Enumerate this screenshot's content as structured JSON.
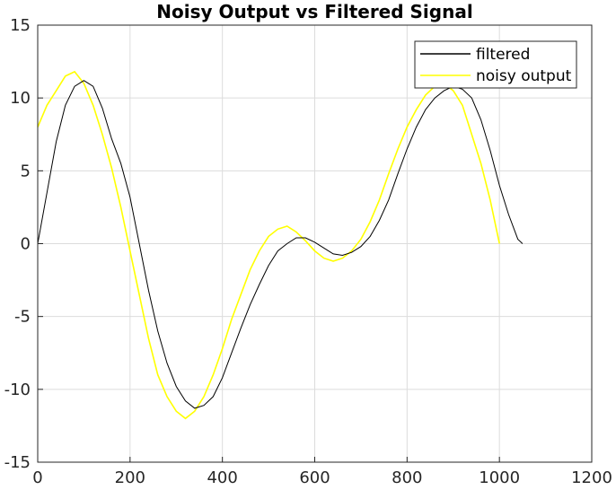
{
  "chart_data": {
    "type": "line",
    "title": "Noisy Output vs Filtered Signal",
    "xlabel": "",
    "ylabel": "",
    "xlim": [
      0,
      1200
    ],
    "ylim": [
      -15,
      15
    ],
    "xticks": [
      0,
      200,
      400,
      600,
      800,
      1000,
      1200
    ],
    "yticks": [
      -15,
      -10,
      -5,
      0,
      5,
      10,
      15
    ],
    "grid": true,
    "legend_position": "top-right",
    "series": [
      {
        "name": "filtered",
        "color": "#000000",
        "x": [
          0,
          20,
          40,
          60,
          80,
          100,
          120,
          140,
          160,
          180,
          200,
          220,
          240,
          260,
          280,
          300,
          320,
          340,
          360,
          380,
          400,
          420,
          440,
          460,
          480,
          500,
          520,
          540,
          560,
          580,
          600,
          620,
          640,
          660,
          680,
          700,
          720,
          740,
          760,
          780,
          800,
          820,
          840,
          860,
          880,
          900,
          920,
          940,
          960,
          980,
          1000,
          1020,
          1040,
          1050
        ],
        "y": [
          0,
          3.5,
          7,
          9.5,
          10.8,
          11.2,
          10.8,
          9.3,
          7.2,
          5.5,
          3.2,
          0,
          -3.2,
          -6,
          -8.2,
          -9.8,
          -10.8,
          -11.3,
          -11.1,
          -10.5,
          -9.2,
          -7.5,
          -5.8,
          -4.2,
          -2.8,
          -1.5,
          -0.5,
          0,
          0.4,
          0.4,
          0.1,
          -0.3,
          -0.7,
          -0.8,
          -0.6,
          -0.2,
          0.5,
          1.6,
          3,
          4.8,
          6.5,
          8,
          9.2,
          10,
          10.5,
          10.8,
          10.6,
          10,
          8.5,
          6.4,
          4,
          2,
          0.3,
          0
        ]
      },
      {
        "name": "noisy output",
        "color": "#ffff00",
        "x": [
          0,
          20,
          40,
          60,
          80,
          100,
          120,
          140,
          160,
          180,
          200,
          220,
          240,
          260,
          280,
          300,
          320,
          340,
          360,
          380,
          400,
          420,
          440,
          460,
          480,
          500,
          520,
          540,
          560,
          580,
          600,
          620,
          640,
          660,
          680,
          700,
          720,
          740,
          760,
          780,
          800,
          820,
          840,
          860,
          880,
          900,
          920,
          940,
          960,
          980,
          1000
        ],
        "y": [
          8,
          9.5,
          10.5,
          11.5,
          11.8,
          11,
          9.5,
          7.5,
          5.2,
          2.5,
          -0.5,
          -3.5,
          -6.5,
          -9,
          -10.5,
          -11.5,
          -12,
          -11.5,
          -10.5,
          -9,
          -7.2,
          -5.2,
          -3.5,
          -1.8,
          -0.5,
          0.5,
          1,
          1.2,
          0.8,
          0.2,
          -0.5,
          -1,
          -1.2,
          -1,
          -0.5,
          0.3,
          1.5,
          3,
          4.8,
          6.5,
          8,
          9.2,
          10.2,
          10.8,
          11,
          10.5,
          9.5,
          7.5,
          5.5,
          3,
          0
        ]
      }
    ]
  }
}
